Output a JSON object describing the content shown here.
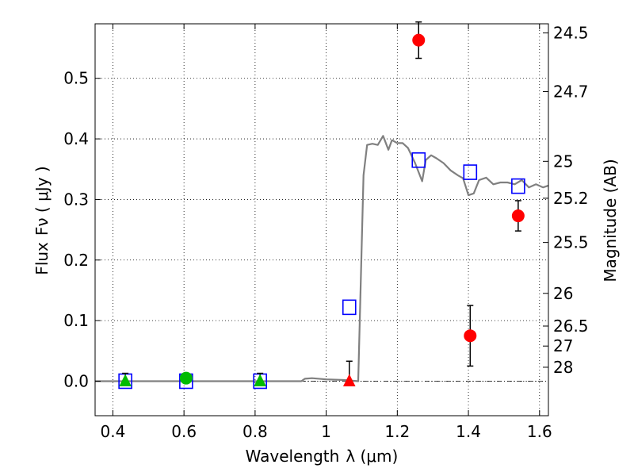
{
  "chart_data": {
    "type": "scatter",
    "xlabel": "Wavelength",
    "xlabel_math": "λ (μm)",
    "ylabel": "Flux",
    "ylabel_math": "Fν ( μJy )",
    "right_ylabel": "Magnitude (AB)",
    "xlim": [
      0.35,
      1.625
    ],
    "ylim": [
      -0.057,
      0.59
    ],
    "x_ticks": [
      0.4,
      0.6,
      0.8,
      1.0,
      1.2,
      1.4,
      1.6
    ],
    "x_tick_labels": [
      "0.4",
      "0.6",
      "0.8",
      "1",
      "1.2",
      "1.4",
      "1.6"
    ],
    "y_ticks": [
      0.0,
      0.1,
      0.2,
      0.3,
      0.4,
      0.5
    ],
    "y_tick_labels": [
      "0.0",
      "0.1",
      "0.2",
      "0.3",
      "0.4",
      "0.5"
    ],
    "right_ticks": [
      {
        "label": "24.5",
        "flux": 0.575
      },
      {
        "label": "24.7",
        "flux": 0.478
      },
      {
        "label": "25",
        "flux": 0.363
      },
      {
        "label": "25.2",
        "flux": 0.302
      },
      {
        "label": "25.5",
        "flux": 0.229
      },
      {
        "label": "26",
        "flux": 0.145
      },
      {
        "label": "26.5",
        "flux": 0.091
      },
      {
        "label": "27",
        "flux": 0.058
      },
      {
        "label": "28",
        "flux": 0.023
      }
    ],
    "grid": true,
    "colors": {
      "model": "#808080",
      "red": "#ff0000",
      "green": "#00bb00",
      "blue_square": "#0000ff",
      "errorbar": "#000000"
    },
    "series": [
      {
        "kind": "line",
        "x": [
          0.35,
          0.9,
          0.93,
          0.94,
          0.96,
          1.0,
          1.05,
          1.09,
          1.105,
          1.115,
          1.13,
          1.145,
          1.16,
          1.175,
          1.185,
          1.2,
          1.215,
          1.23,
          1.25,
          1.27,
          1.28,
          1.295,
          1.31,
          1.33,
          1.35,
          1.37,
          1.385,
          1.4,
          1.415,
          1.43,
          1.45,
          1.47,
          1.49,
          1.51,
          1.53,
          1.55,
          1.57,
          1.59,
          1.61,
          1.625
        ],
        "y": [
          0.0,
          0.0,
          0.0,
          0.004,
          0.005,
          0.003,
          0.002,
          0.0,
          0.34,
          0.39,
          0.392,
          0.39,
          0.405,
          0.382,
          0.398,
          0.393,
          0.393,
          0.385,
          0.36,
          0.33,
          0.365,
          0.373,
          0.368,
          0.36,
          0.348,
          0.34,
          0.335,
          0.307,
          0.31,
          0.332,
          0.336,
          0.325,
          0.328,
          0.328,
          0.325,
          0.332,
          0.32,
          0.325,
          0.32,
          0.323
        ]
      },
      {
        "kind": "squares",
        "x": [
          0.435,
          0.606,
          0.814,
          1.065,
          1.26,
          1.405,
          1.54
        ],
        "y": [
          0.0,
          0.0,
          0.0,
          0.122,
          0.365,
          0.345,
          0.322
        ]
      },
      {
        "kind": "circles",
        "color": "red",
        "x": [
          1.26,
          1.405,
          1.54
        ],
        "y": [
          0.563,
          0.075,
          0.273
        ],
        "yerr": [
          0.03,
          0.05,
          0.025
        ]
      },
      {
        "kind": "circles",
        "color": "green",
        "x": [
          0.606
        ],
        "y": [
          0.005
        ],
        "yerr": [
          0.008
        ]
      },
      {
        "kind": "triangles",
        "color": "green",
        "x": [
          0.435,
          0.814
        ],
        "y": [
          0.0,
          0.0
        ],
        "yerr_up": [
          0.013,
          0.013
        ]
      },
      {
        "kind": "triangles",
        "color": "red",
        "x": [
          1.065
        ],
        "y": [
          0.0
        ],
        "yerr_up": [
          0.033
        ]
      }
    ]
  }
}
